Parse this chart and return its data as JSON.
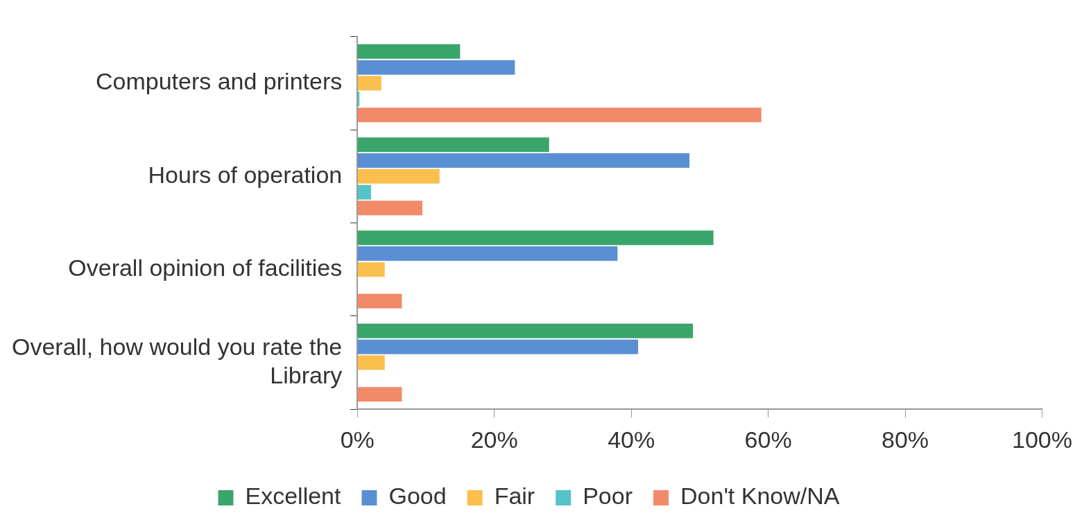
{
  "chart_data": {
    "type": "bar",
    "orientation": "horizontal",
    "categories": [
      "Computers and printers",
      "Hours of operation",
      "Overall opinion of facilities",
      "Overall, how would you rate the Library"
    ],
    "series": [
      {
        "name": "Excellent",
        "color": "#3aa56a",
        "values": [
          15,
          28,
          52,
          49
        ]
      },
      {
        "name": "Good",
        "color": "#5a8fd4",
        "values": [
          23,
          48.5,
          38,
          41
        ]
      },
      {
        "name": "Fair",
        "color": "#fbbf4e",
        "values": [
          3.5,
          12,
          4,
          4
        ]
      },
      {
        "name": "Poor",
        "color": "#55c4c8",
        "values": [
          0.3,
          2,
          0,
          0
        ]
      },
      {
        "name": "Don't Know/NA",
        "color": "#f28a6a",
        "values": [
          59,
          9.5,
          6.5,
          6.5
        ]
      }
    ],
    "xlim": [
      0,
      100
    ],
    "xticks": [
      {
        "value": 0,
        "label": "0%"
      },
      {
        "value": 20,
        "label": "20%"
      },
      {
        "value": 40,
        "label": "40%"
      },
      {
        "value": 60,
        "label": "60%"
      },
      {
        "value": 80,
        "label": "80%"
      },
      {
        "value": 100,
        "label": "100%"
      }
    ],
    "grid": false,
    "legend": "bottom"
  }
}
